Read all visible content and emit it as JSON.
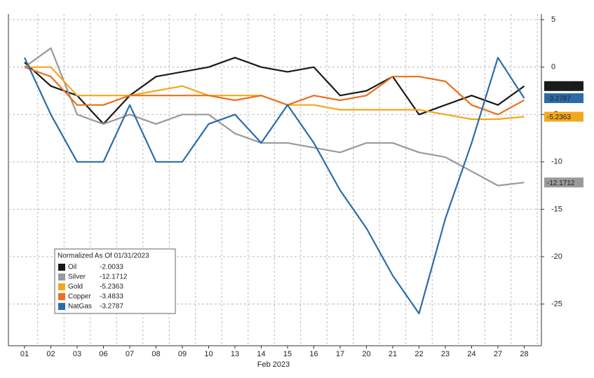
{
  "chart_data": {
    "type": "line",
    "x_label": "Feb 2023",
    "legend_title": "Normalized As Of 01/31/2023",
    "categories": [
      "01",
      "02",
      "03",
      "06",
      "07",
      "08",
      "09",
      "10",
      "13",
      "14",
      "15",
      "16",
      "17",
      "20",
      "21",
      "22",
      "23",
      "24",
      "27",
      "28"
    ],
    "ylim": [
      -29.4,
      5.6
    ],
    "yticks": [
      5,
      0,
      -5,
      -10,
      -15,
      -20,
      -25
    ],
    "grid": true,
    "legend": "lower left",
    "series": [
      {
        "name": "Oil",
        "color": "#1a1a1a",
        "label": "-2.0033",
        "end_tag": true,
        "values": [
          0.5,
          -2,
          -3,
          -6,
          -3,
          -1,
          -0.5,
          0,
          1,
          0,
          -0.5,
          0,
          -3,
          -2.5,
          -1,
          -5,
          -4,
          -3,
          -4,
          -2.0033
        ]
      },
      {
        "name": "Silver",
        "color": "#9a9a9a",
        "label": "-12.1712",
        "end_tag": true,
        "values": [
          0,
          2,
          -5,
          -6,
          -5,
          -6,
          -5,
          -5,
          -7,
          -8,
          -8,
          -8.5,
          -9,
          -8,
          -8,
          -9,
          -9.5,
          -11,
          -12.5,
          -12.1712
        ]
      },
      {
        "name": "Gold",
        "color": "#f2a81d",
        "label": "-5.2363",
        "end_tag": true,
        "values": [
          0,
          0,
          -3,
          -3,
          -3,
          -2.5,
          -2,
          -3,
          -3,
          -3,
          -4,
          -4,
          -4.5,
          -4.5,
          -4.5,
          -4.5,
          -5,
          -5.5,
          -5.5,
          -5.2363
        ]
      },
      {
        "name": "Copper",
        "color": "#e8701f",
        "label": "-3.4833",
        "end_tag": false,
        "values": [
          0,
          -1,
          -4,
          -4,
          -3,
          -3,
          -3,
          -3,
          -3.5,
          -3,
          -4,
          -3,
          -3.5,
          -3,
          -1,
          -1,
          -1.5,
          -4,
          -5,
          -3.4833
        ]
      },
      {
        "name": "NatGas",
        "color": "#2b6ca8",
        "label": "-3.2787",
        "end_tag": true,
        "values": [
          1,
          -5,
          -10,
          -10,
          -4,
          -10,
          -10,
          -6,
          -5,
          -8,
          -4,
          -8,
          -13,
          -17,
          -22,
          -26,
          -16,
          -8,
          1,
          -3.2787
        ]
      }
    ]
  }
}
